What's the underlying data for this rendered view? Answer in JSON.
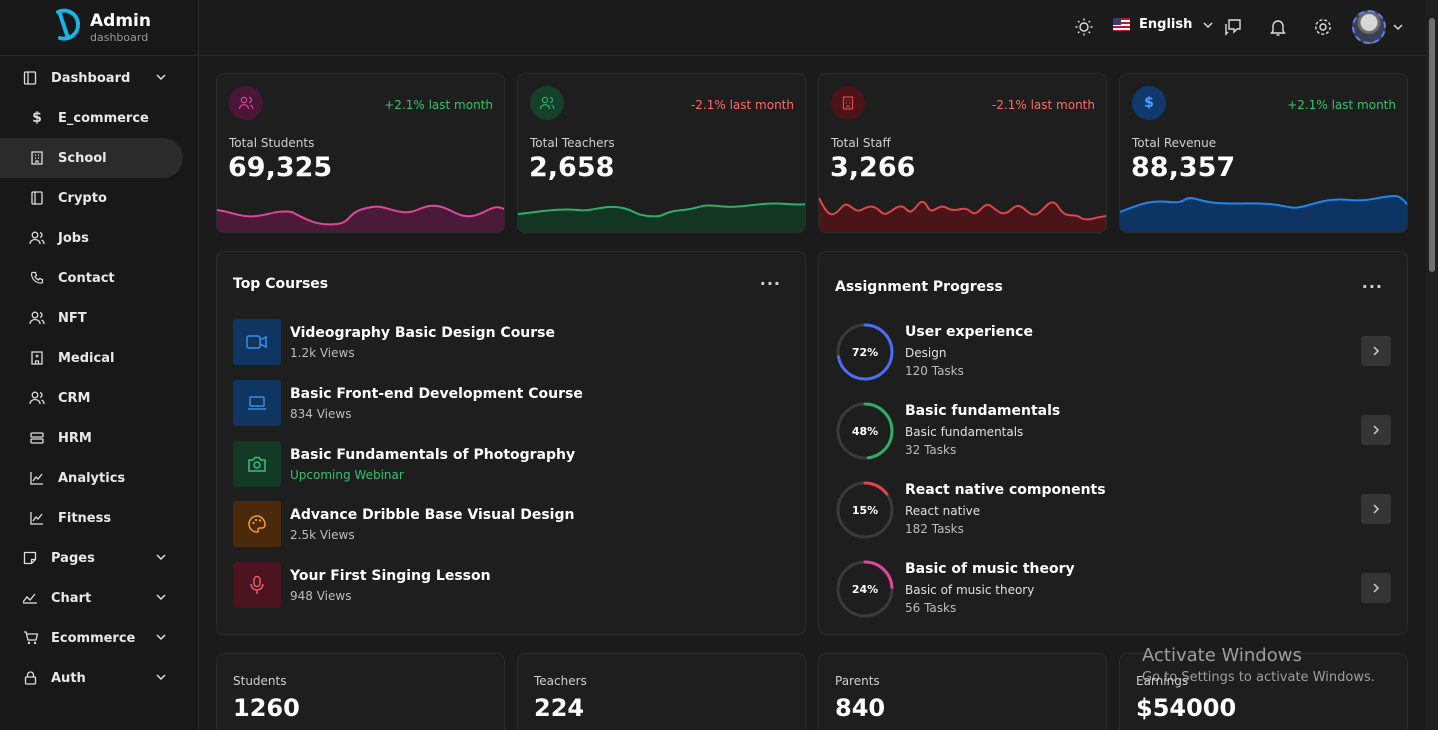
{
  "brand": {
    "title": "Admin",
    "subtitle": "dashboard",
    "color": "#19b3e6"
  },
  "sidebar": {
    "items": [
      {
        "label": "Dashboard",
        "icon": "dashboard-icon",
        "expandable": true
      },
      {
        "label": "E_commerce",
        "icon": "dollar-icon"
      },
      {
        "label": "School",
        "icon": "building-icon",
        "active": true
      },
      {
        "label": "Crypto",
        "icon": "book-icon"
      },
      {
        "label": "Jobs",
        "icon": "users-icon"
      },
      {
        "label": "Contact",
        "icon": "phone-icon"
      },
      {
        "label": "NFT",
        "icon": "users-icon"
      },
      {
        "label": "Medical",
        "icon": "hospital-icon"
      },
      {
        "label": "CRM",
        "icon": "users-icon"
      },
      {
        "label": "HRM",
        "icon": "server-icon"
      },
      {
        "label": "Analytics",
        "icon": "chart-line-icon"
      },
      {
        "label": "Fitness",
        "icon": "chart-line-icon"
      },
      {
        "label": "Pages",
        "icon": "sticky-note-icon",
        "expandable": true
      },
      {
        "label": "Chart",
        "icon": "trend-icon",
        "expandable": true
      },
      {
        "label": "Ecommerce",
        "icon": "cart-icon",
        "expandable": true
      },
      {
        "label": "Auth",
        "icon": "lock-icon",
        "expandable": true
      }
    ]
  },
  "header": {
    "language": "English"
  },
  "stats": [
    {
      "label": "Total Students",
      "value": "69,325",
      "change": "+2.1% last month",
      "color": "#e0469b",
      "change_color": "#36c26e"
    },
    {
      "label": "Total Teachers",
      "value": "2,658",
      "change": "-2.1% last month",
      "color": "#2fae6a",
      "change_color": "#ff6b6b"
    },
    {
      "label": "Total Staff",
      "value": "3,266",
      "change": "-2.1% last month",
      "color": "#e0454b",
      "change_color": "#ff6b6b"
    },
    {
      "label": "Total Revenue",
      "value": "88,357",
      "change": "+2.1% last month",
      "color": "#1e86ee",
      "change_color": "#36c26e"
    }
  ],
  "top_courses": {
    "title": "Top Courses",
    "items": [
      {
        "title": "Videography Basic Design Course",
        "sub": "1.2k Views",
        "icon": "video-icon",
        "color": "#3c8fe6",
        "bg": "#0f3561"
      },
      {
        "title": "Basic Front-end Development Course",
        "sub": "834 Views",
        "icon": "laptop-icon",
        "color": "#3c8fe6",
        "bg": "#0f3561"
      },
      {
        "title": "Basic Fundamentals of Photography",
        "sub": "Upcoming Webinar",
        "icon": "camera-icon",
        "color": "#3dbf78",
        "bg": "#123a26",
        "sub_color": "#36c26e"
      },
      {
        "title": "Advance Dribble Base Visual Design",
        "sub": "2.5k Views",
        "icon": "palette-icon",
        "color": "#f0a040",
        "bg": "#4a2a0a"
      },
      {
        "title": "Your First Singing Lesson",
        "sub": "948 Views",
        "icon": "microphone-icon",
        "color": "#e85a6a",
        "bg": "#4b1420"
      }
    ]
  },
  "assignment_progress": {
    "title": "Assignment Progress",
    "items": [
      {
        "title": "User experience",
        "category": "Design",
        "tasks": "120 Tasks",
        "percent": 72,
        "percent_label": "72%",
        "color": "#4a6cf7"
      },
      {
        "title": "Basic fundamentals",
        "category": "Basic fundamentals",
        "tasks": "32 Tasks",
        "percent": 48,
        "percent_label": "48%",
        "color": "#2fae6a"
      },
      {
        "title": "React native components",
        "category": "React native",
        "tasks": "182 Tasks",
        "percent": 15,
        "percent_label": "15%",
        "color": "#e0454b"
      },
      {
        "title": "Basic of music theory",
        "category": "Basic of music theory",
        "tasks": "56 Tasks",
        "percent": 24,
        "percent_label": "24%",
        "color": "#e0469b"
      }
    ]
  },
  "summary": [
    {
      "label": "Students",
      "value": "1260"
    },
    {
      "label": "Teachers",
      "value": "224"
    },
    {
      "label": "Parents",
      "value": "840"
    },
    {
      "label": "Earnings",
      "value": "$54000"
    }
  ],
  "watermark": {
    "title": "Activate Windows",
    "sub": "Go to Settings to activate Windows."
  }
}
